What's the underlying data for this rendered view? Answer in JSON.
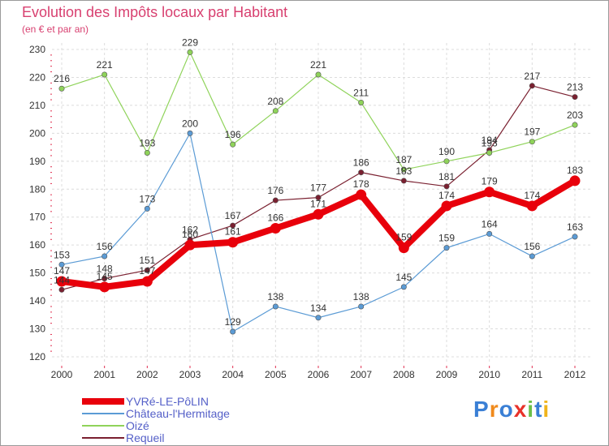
{
  "chart_data": {
    "type": "line",
    "title": "Evolution des Impôts locaux par Habitant",
    "subtitle": "(en € et par an)",
    "xlabel": "",
    "ylabel": "",
    "categories": [
      "2000",
      "2001",
      "2002",
      "2003",
      "2004",
      "2005",
      "2006",
      "2007",
      "2008",
      "2009",
      "2010",
      "2011",
      "2012"
    ],
    "ylim": [
      120,
      230
    ],
    "yticks": [
      120,
      130,
      140,
      150,
      160,
      170,
      180,
      190,
      200,
      210,
      220,
      230
    ],
    "grid": true,
    "legend_position": "bottom-left",
    "series": [
      {
        "name": "YVRé-LE-PôLIN",
        "color": "#e8000b",
        "values": [
          147,
          145,
          147,
          160,
          161,
          166,
          171,
          178,
          159,
          174,
          179,
          174,
          183
        ]
      },
      {
        "name": "Château-l'Hermitage",
        "color": "#5b9bd5",
        "values": [
          153,
          156,
          173,
          200,
          129,
          138,
          134,
          138,
          145,
          159,
          164,
          156,
          163
        ]
      },
      {
        "name": "Oizé",
        "color": "#8fd35a",
        "values": [
          216,
          221,
          193,
          229,
          196,
          208,
          221,
          211,
          187,
          190,
          193,
          197,
          203
        ]
      },
      {
        "name": "Requeil",
        "color": "#7a2030",
        "values": [
          144,
          148,
          151,
          162,
          167,
          176,
          177,
          186,
          183,
          181,
          194,
          217,
          213
        ]
      }
    ]
  },
  "logo": {
    "text": "Proxiti",
    "colors": [
      "#3a7fd5",
      "#f08a1c",
      "#3a7fd5",
      "#e8322a",
      "#6cc04a",
      "#3a7fd5",
      "#f0b41c"
    ]
  }
}
